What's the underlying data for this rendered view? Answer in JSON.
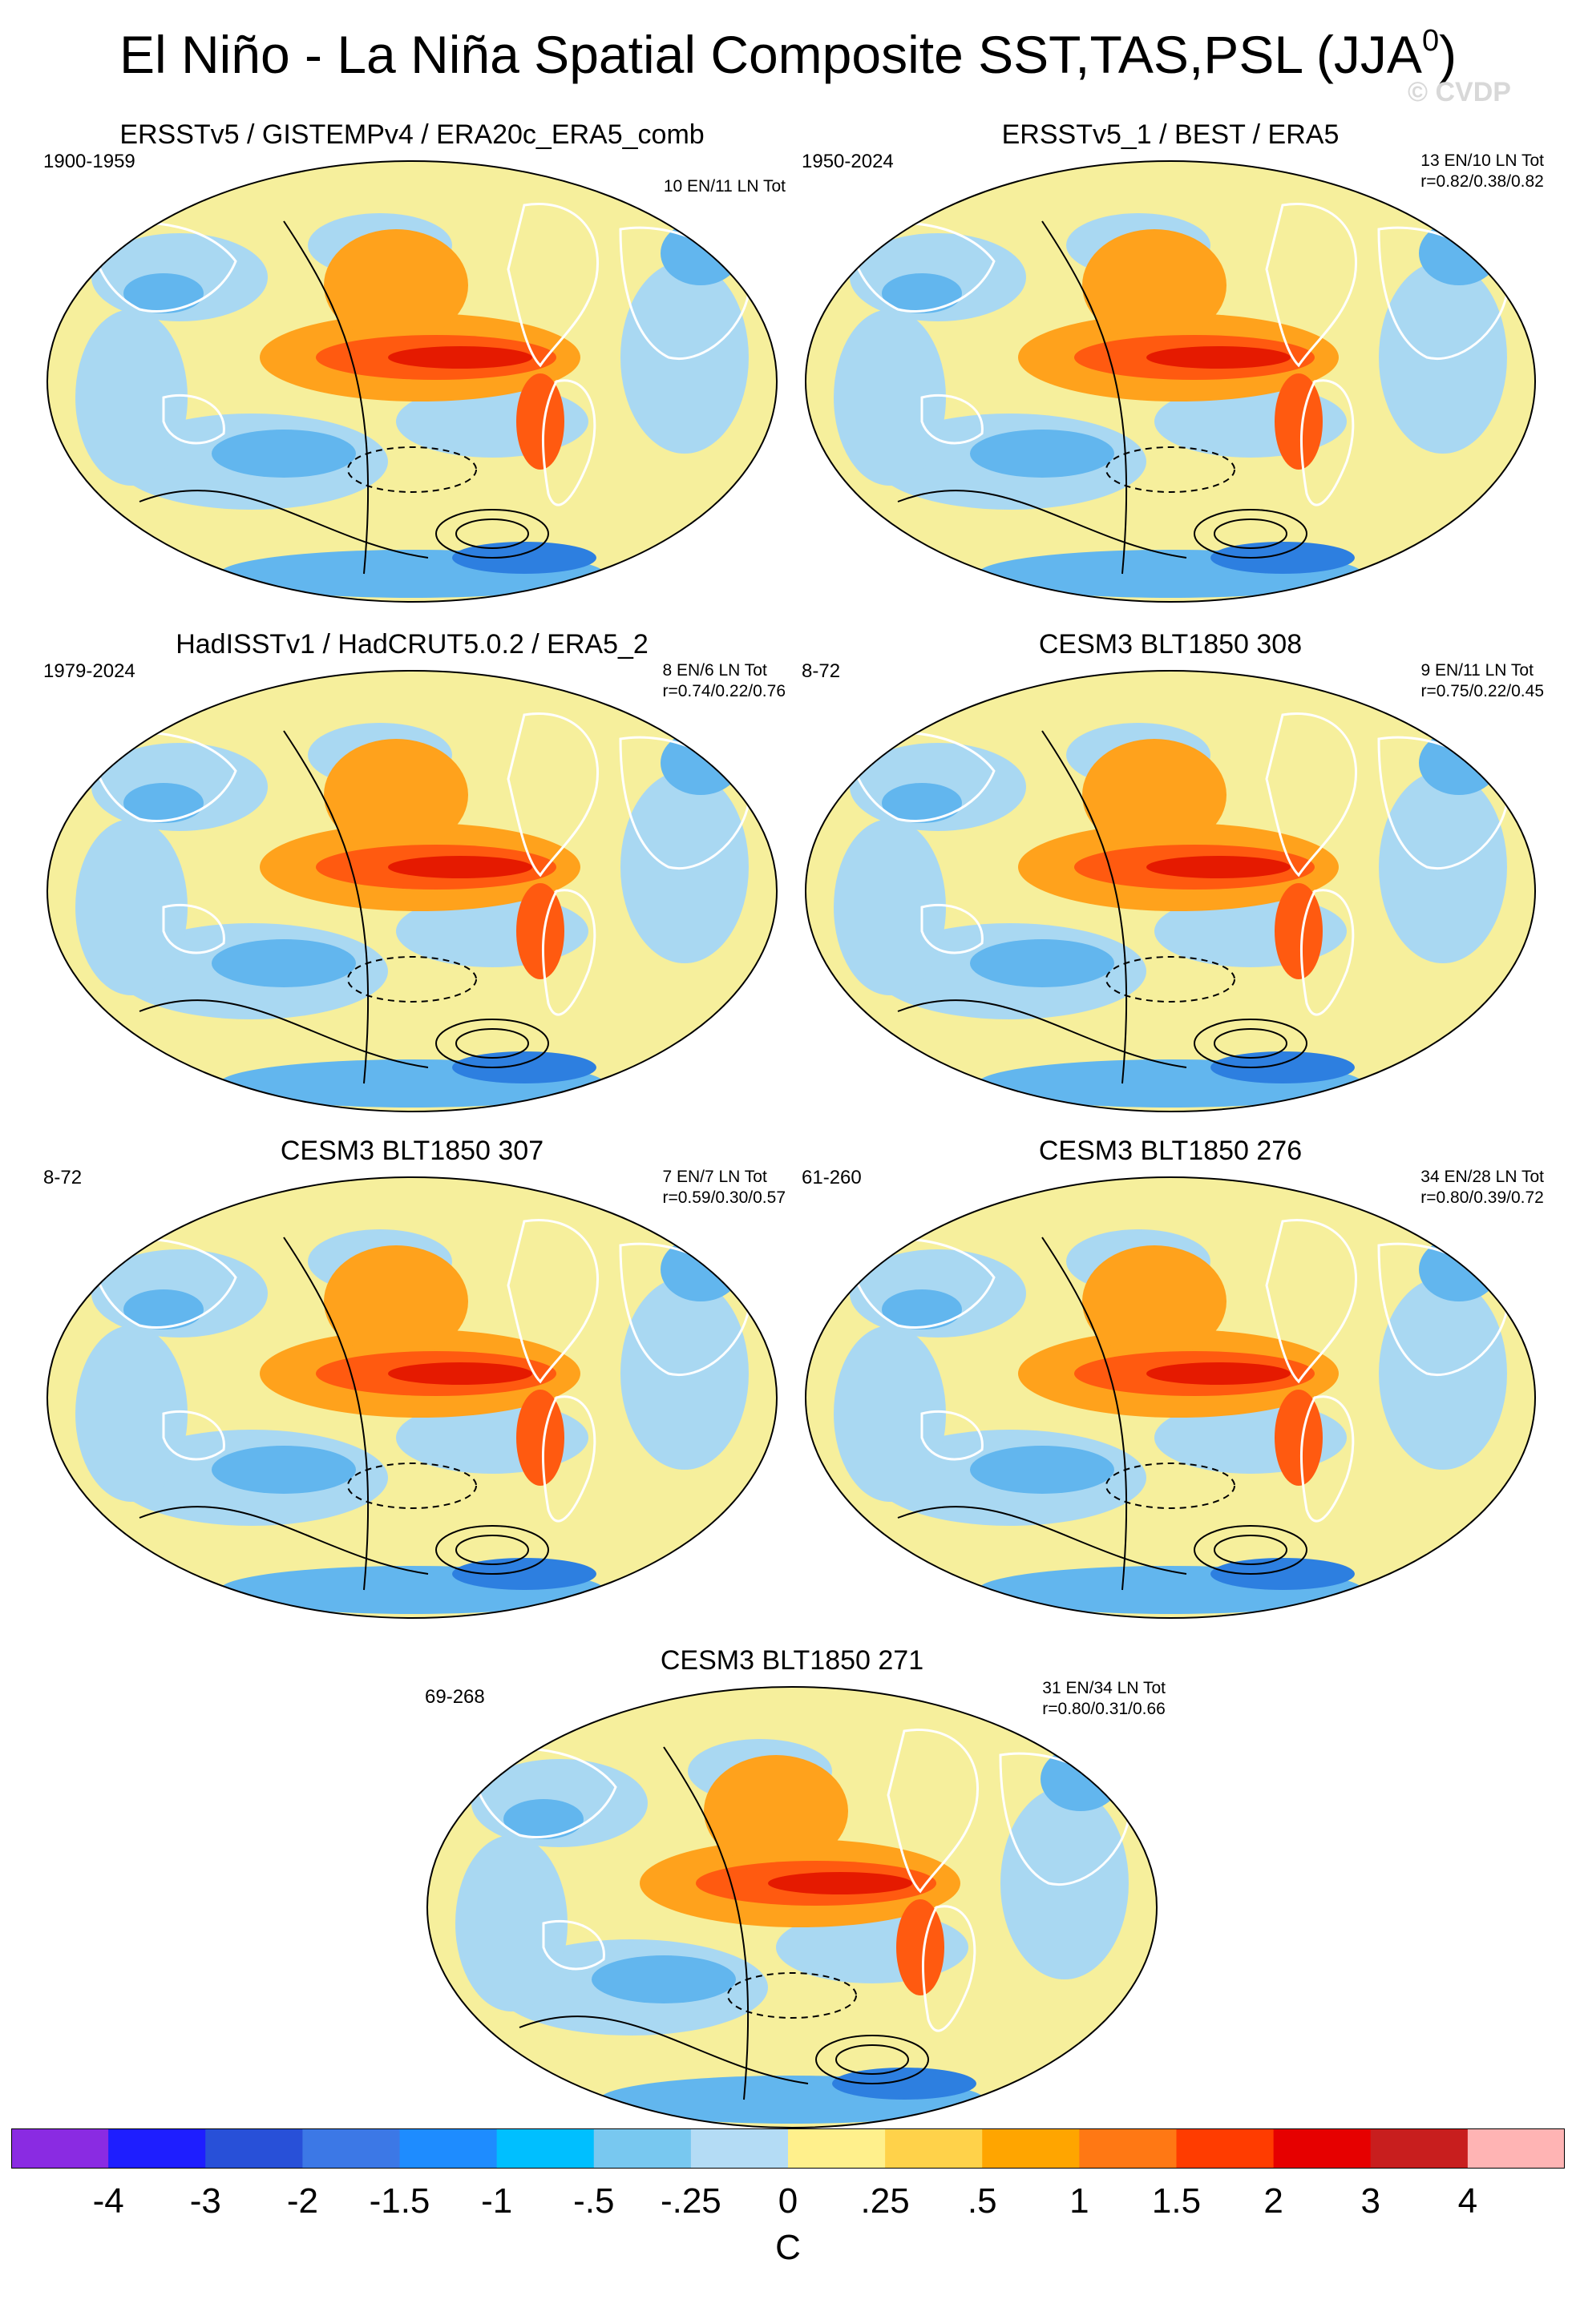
{
  "figure": {
    "title": "El Niño - La Niña Spatial Composite SST,TAS,PSL (JJA",
    "title_superscript": "0",
    "title_close": ")",
    "watermark": "© CVDP"
  },
  "panels": [
    {
      "title": "ERSSTv5 / GISTEMPv4 / ERA20c_ERA5_comb",
      "years": "1900-1959",
      "counts": "10 EN/11 LN Tot",
      "corr": ""
    },
    {
      "title": "ERSSTv5_1 / BEST / ERA5",
      "years": "1950-2024",
      "counts": "13 EN/10 LN Tot",
      "corr": "r=0.82/0.38/0.82"
    },
    {
      "title": "HadISSTv1 / HadCRUT5.0.2 / ERA5_2",
      "years": "1979-2024",
      "counts": "8 EN/6 LN Tot",
      "corr": "r=0.74/0.22/0.76"
    },
    {
      "title": "CESM3 BLT1850 308",
      "years": "8-72",
      "counts": "9 EN/11 LN Tot",
      "corr": "r=0.75/0.22/0.45"
    },
    {
      "title": "CESM3 BLT1850 307",
      "years": "8-72",
      "counts": "7 EN/7 LN Tot",
      "corr": "r=0.59/0.30/0.57"
    },
    {
      "title": "CESM3 BLT1850 276",
      "years": "61-260",
      "counts": "34 EN/28 LN Tot",
      "corr": "r=0.80/0.39/0.72"
    },
    {
      "title": "CESM3 BLT1850 271",
      "years": "69-268",
      "counts": "31 EN/34 LN Tot",
      "corr": "r=0.80/0.31/0.66"
    }
  ],
  "colorbar": {
    "units": "C",
    "labels": [
      "-4",
      "-3",
      "-2",
      "-1.5",
      "-1",
      "-.5",
      "-.25",
      "0",
      ".25",
      ".5",
      "1",
      "1.5",
      "2",
      "3",
      "4"
    ],
    "colors": [
      "#8a2be2",
      "#1e1eff",
      "#2850d8",
      "#3c78e6",
      "#1e8cff",
      "#00bfff",
      "#78c8f0",
      "#b4dcf5",
      "#fff08c",
      "#ffd24a",
      "#ffa500",
      "#ff7814",
      "#ff3c00",
      "#e60000",
      "#c81e1e",
      "#ffb4b4"
    ],
    "ocean_colors": {
      "bg_pale": "#f6ef9c",
      "cold_light": "#a9d8f2",
      "cold_mid": "#62b6ee",
      "cold_deep": "#2d7fe0",
      "warm_mid": "#ffa21c",
      "warm_hot": "#ff5a10",
      "warm_core": "#e51a00",
      "land_white": "#ffffff"
    }
  }
}
